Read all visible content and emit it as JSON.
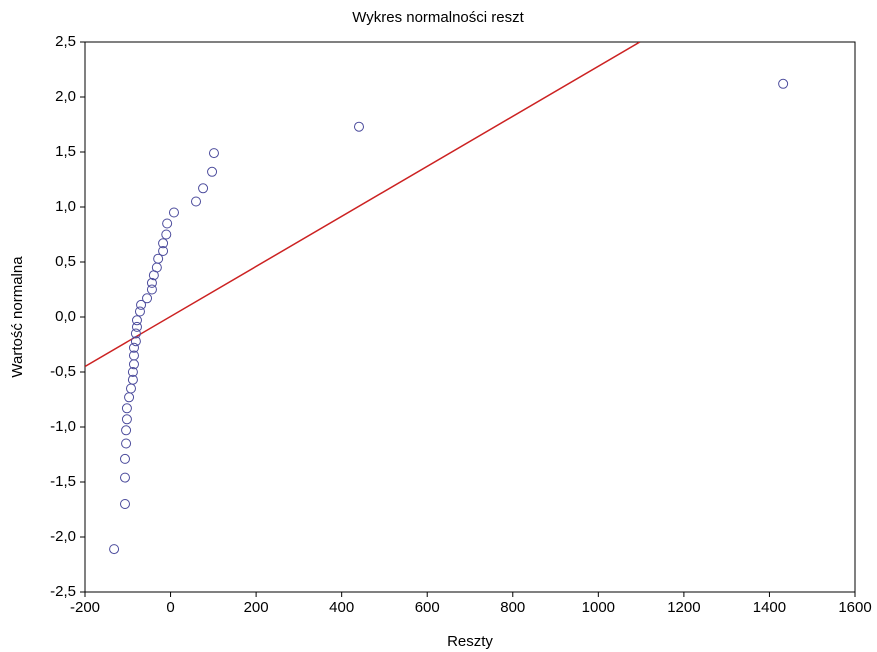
{
  "chart_data": {
    "type": "scatter",
    "title": "Wykres normalności reszt",
    "x_label": "Reszty",
    "y_label": "Wartość normalna",
    "color": "#4b4b9c",
    "x": [
      -132,
      -106.5,
      -106.5,
      -106.5,
      -104,
      -104,
      -102,
      -102,
      -97,
      -92.5,
      -88,
      -88,
      -85.5,
      -85.5,
      -85.5,
      -81,
      -81,
      -78.5,
      -78.5,
      -71.5,
      -69,
      -55,
      -43.5,
      -43.5,
      -39,
      -32,
      -29,
      -17.5,
      -17.5,
      -10,
      -8,
      8,
      59.5,
      76,
      97,
      101.5,
      440.5,
      1432
    ],
    "values": [
      -2.11,
      -1.7,
      -1.46,
      -1.29,
      -1.15,
      -1.03,
      -0.93,
      -0.83,
      -0.73,
      -0.65,
      -0.57,
      -0.5,
      -0.43,
      -0.35,
      -0.28,
      -0.22,
      -0.15,
      -0.09,
      -0.03,
      0.05,
      0.11,
      0.17,
      0.25,
      0.31,
      0.38,
      0.45,
      0.53,
      0.6,
      0.67,
      0.75,
      0.85,
      0.95,
      1.05,
      1.17,
      1.32,
      1.49,
      1.73,
      2.12
    ],
    "reference_line": {
      "color": "#cc2222",
      "x": [
        -200,
        1097
      ],
      "y": [
        -0.45,
        2.5
      ]
    },
    "xlim": [
      -200,
      1600
    ],
    "xticks": [
      -200,
      0,
      200,
      400,
      600,
      800,
      1000,
      1200,
      1400,
      1600
    ],
    "ylim": [
      -2.5,
      2.5
    ],
    "yticks": [
      {
        "value": -2.5,
        "label": "-2,5"
      },
      {
        "value": -2,
        "label": "-2,0"
      },
      {
        "value": -1.5,
        "label": "-1,5"
      },
      {
        "value": -1,
        "label": "-1,0"
      },
      {
        "value": -0.5,
        "label": "-0,5"
      },
      {
        "value": 0,
        "label": "0,0"
      },
      {
        "value": 0.5,
        "label": "0,5"
      },
      {
        "value": 1,
        "label": "1,0"
      },
      {
        "value": 1.5,
        "label": "1,5"
      },
      {
        "value": 2,
        "label": "2,0"
      },
      {
        "value": 2.5,
        "label": "2,5"
      }
    ]
  }
}
